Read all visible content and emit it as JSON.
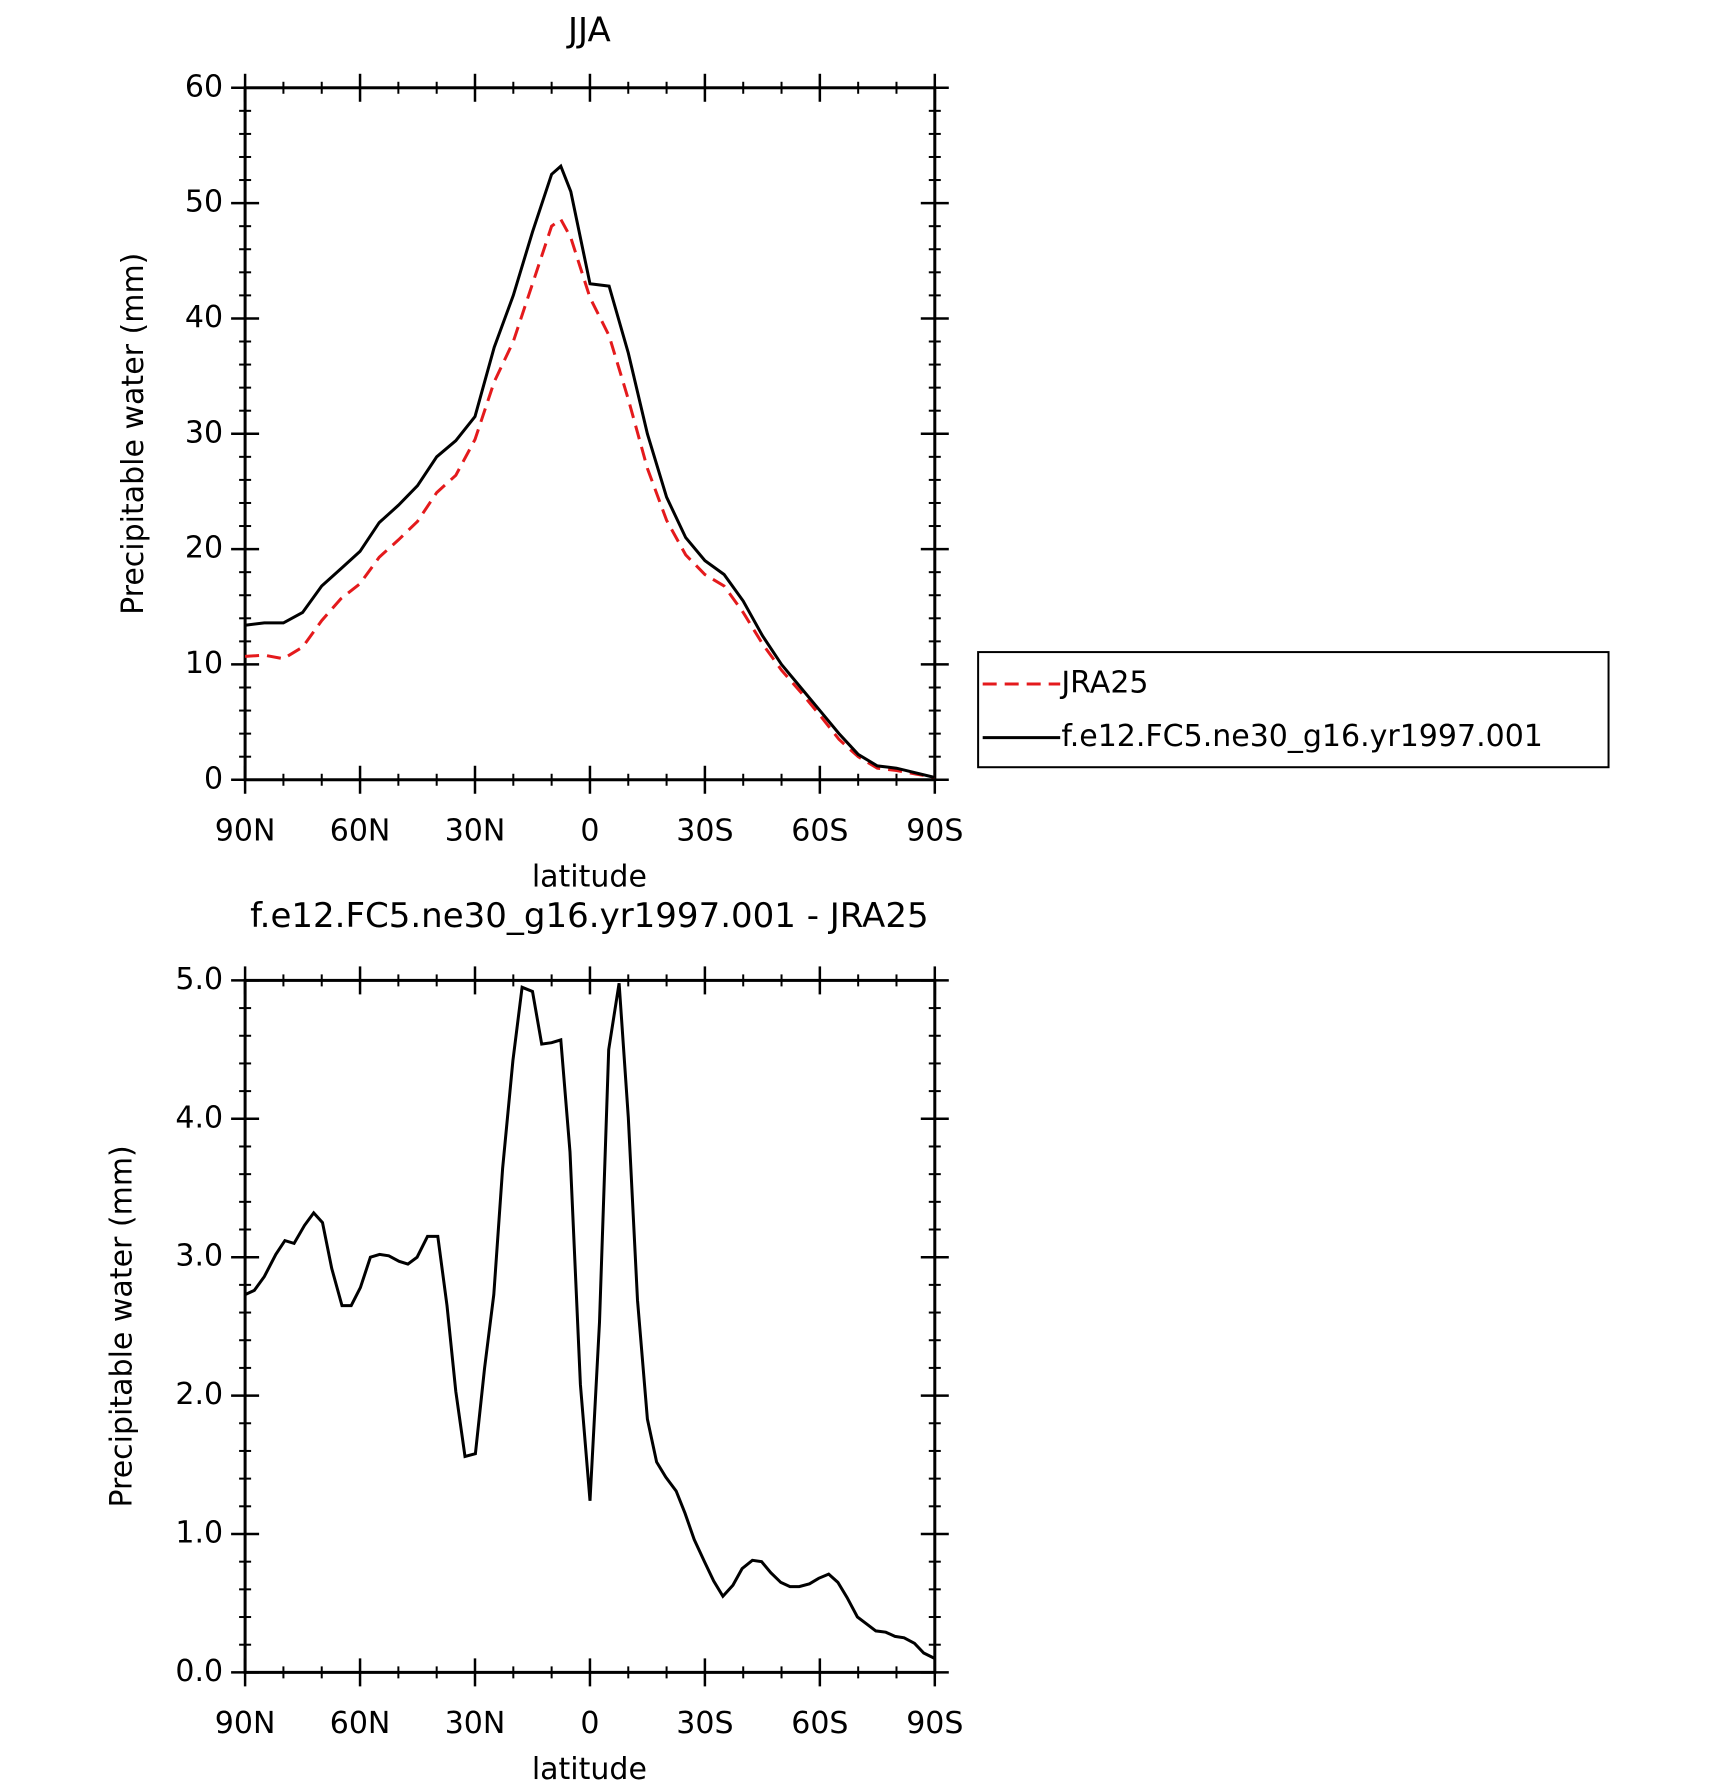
{
  "chart_data": [
    {
      "type": "line",
      "title": "JJA",
      "xlabel": "latitude",
      "ylabel": "Precipitable water (mm)",
      "x": [
        90,
        85,
        80,
        75,
        70,
        65,
        60,
        55,
        50,
        45,
        40,
        35,
        30,
        25,
        20,
        15,
        10,
        7.6,
        5,
        0,
        -5,
        -10,
        -15,
        -20,
        -25,
        -30,
        -35,
        -40,
        -45,
        -50,
        -55,
        -60,
        -65,
        -70,
        -75,
        -80,
        -85,
        -90
      ],
      "series": [
        {
          "name": "JRA25",
          "color": "#e41a1c",
          "linestyle": "dashed",
          "values": [
            10.7,
            10.8,
            10.5,
            11.5,
            13.8,
            15.7,
            17.0,
            19.3,
            20.8,
            22.4,
            24.9,
            26.4,
            29.5,
            34.5,
            38,
            43,
            48,
            48.6,
            47,
            41.8,
            38.5,
            33,
            27,
            22.5,
            19.5,
            17.8,
            16.8,
            14.5,
            11.8,
            9.5,
            7.6,
            5.6,
            3.5,
            2.0,
            1.0,
            0.8,
            0.5,
            0.2
          ]
        },
        {
          "name": "f.e12.FC5.ne30_g16.yr1997.001",
          "color": "#000000",
          "linestyle": "solid",
          "values": [
            13.4,
            13.6,
            13.6,
            14.5,
            16.8,
            18.3,
            19.8,
            22.3,
            23.8,
            25.5,
            28.0,
            29.4,
            31.5,
            37.5,
            42,
            47.5,
            52.5,
            53.2,
            51,
            43,
            42.8,
            37,
            30,
            24.5,
            21,
            19,
            17.8,
            15.5,
            12.5,
            10,
            8,
            6,
            4,
            2.2,
            1.2,
            1.0,
            0.6,
            0.2
          ]
        }
      ],
      "xlim": [
        90,
        -90
      ],
      "xticks": [
        {
          "value": 90,
          "label": "90N"
        },
        {
          "value": 60,
          "label": "60N"
        },
        {
          "value": 30,
          "label": "30N"
        },
        0,
        {
          "value": -30,
          "label": "30S"
        },
        {
          "value": -60,
          "label": "60S"
        },
        {
          "value": -90,
          "label": "90S"
        }
      ],
      "ylim": [
        0,
        60
      ],
      "yticks": [
        0,
        10,
        20,
        30,
        40,
        50,
        60
      ],
      "legend": "right"
    },
    {
      "type": "line",
      "title": "f.e12.FC5.ne30_g16.yr1997.001 - JRA25",
      "xlabel": "latitude",
      "ylabel": "Precipitable water (mm)",
      "x": [
        90,
        87.6,
        85,
        82,
        79.6,
        77.2,
        74.5,
        72.1,
        69.8,
        67.4,
        64.7,
        62.3,
        59.9,
        57.3,
        54.9,
        52.5,
        49.8,
        47.5,
        45.1,
        42.4,
        39.7,
        37.3,
        35,
        32.6,
        29.9,
        27.5,
        25.1,
        22.8,
        20.1,
        17.7,
        15,
        12.6,
        10,
        7.6,
        5.2,
        2.5,
        0,
        -2.5,
        -4.9,
        -7.6,
        -10,
        -12.4,
        -15,
        -17.4,
        -19.8,
        -22.5,
        -24.8,
        -27.2,
        -29.9,
        -32.3,
        -34.7,
        -37.3,
        -39.7,
        -42.4,
        -44.8,
        -47.2,
        -49.8,
        -52.2,
        -54.6,
        -57.3,
        -59.7,
        -62.3,
        -64.7,
        -67.1,
        -69.8,
        -72.2,
        -74.6,
        -77.2,
        -79.6,
        -82,
        -84.7,
        -87.1,
        -90
      ],
      "series": [
        {
          "name": "f.e12.FC5.ne30_g16.yr1997.001 - JRA25",
          "color": "#000000",
          "linestyle": "solid",
          "values": [
            2.73,
            2.76,
            2.86,
            3.02,
            3.12,
            3.1,
            3.23,
            3.32,
            3.25,
            2.92,
            2.65,
            2.65,
            2.78,
            3.0,
            3.02,
            3.01,
            2.97,
            2.95,
            3.0,
            3.15,
            3.15,
            2.65,
            2.03,
            1.56,
            1.58,
            2.2,
            2.73,
            3.64,
            4.42,
            4.95,
            4.92,
            4.54,
            4.55,
            4.57,
            3.76,
            2.08,
            1.24,
            2.53,
            4.5,
            4.98,
            4.01,
            2.69,
            1.83,
            1.52,
            1.41,
            1.31,
            1.15,
            0.96,
            0.8,
            0.66,
            0.55,
            0.63,
            0.75,
            0.81,
            0.8,
            0.72,
            0.65,
            0.62,
            0.62,
            0.64,
            0.68,
            0.71,
            0.65,
            0.54,
            0.4,
            0.35,
            0.3,
            0.29,
            0.26,
            0.25,
            0.21,
            0.14,
            0.1
          ]
        }
      ],
      "xlim": [
        90,
        -90
      ],
      "xticks": [
        {
          "value": 90,
          "label": "90N"
        },
        {
          "value": 60,
          "label": "60N"
        },
        {
          "value": 30,
          "label": "30N"
        },
        0,
        {
          "value": -30,
          "label": "30S"
        },
        {
          "value": -60,
          "label": "60S"
        },
        {
          "value": -90,
          "label": "90S"
        }
      ],
      "ylim": [
        0,
        5
      ],
      "yticks": [
        {
          "value": 0,
          "label": "0.0"
        },
        {
          "value": 1,
          "label": "1.0"
        },
        {
          "value": 2,
          "label": "2.0"
        },
        {
          "value": 3,
          "label": "3.0"
        },
        {
          "value": 4,
          "label": "4.0"
        },
        {
          "value": 5,
          "label": "5.0"
        }
      ]
    }
  ]
}
